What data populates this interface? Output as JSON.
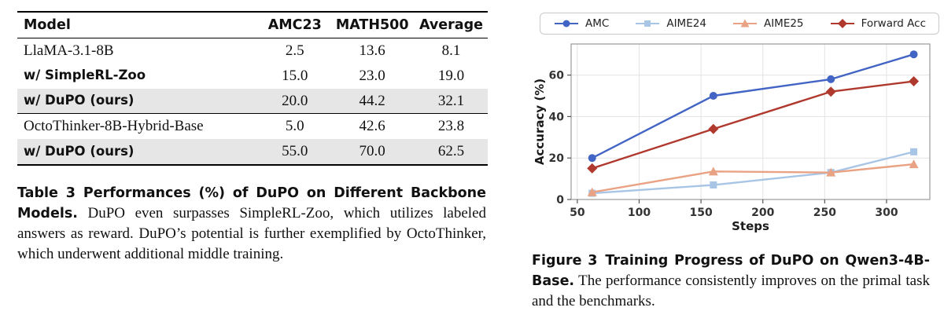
{
  "table": {
    "headers": [
      "Model",
      "AMC23",
      "MATH500",
      "Average"
    ],
    "groups": [
      {
        "rows": [
          {
            "model": "LlaMA-3.1-8B",
            "bold": false,
            "shaded": false,
            "values": [
              "2.5",
              "13.6",
              "8.1"
            ]
          },
          {
            "model": "w/ SimpleRL-Zoo",
            "bold": true,
            "shaded": false,
            "values": [
              "15.0",
              "23.0",
              "19.0"
            ]
          },
          {
            "model": "w/ DuPO (ours)",
            "bold": true,
            "shaded": true,
            "values": [
              "20.0",
              "44.2",
              "32.1"
            ]
          }
        ]
      },
      {
        "rows": [
          {
            "model": "OctoThinker-8B-Hybrid-Base",
            "bold": false,
            "shaded": false,
            "values": [
              "5.0",
              "42.6",
              "23.8"
            ]
          },
          {
            "model": "w/ DuPO (ours)",
            "bold": true,
            "shaded": true,
            "values": [
              "55.0",
              "70.0",
              "62.5"
            ]
          }
        ]
      }
    ],
    "caption_label": "Table 3",
    "caption_title": "Performances (%) of DuPO on Different Backbone Models.",
    "caption_text": "DuPO even surpasses SimpleRL-Zoo, which utilizes labeled answers as reward. DuPO’s potential is further exemplified by OctoThinker, which underwent additional middle training."
  },
  "figure": {
    "caption_label": "Figure 3",
    "caption_title": "Training Progress of DuPO on Qwen3-4B-Base.",
    "caption_text": "The performance consistently improves on the primal task and the benchmarks."
  },
  "chart_data": {
    "type": "line",
    "title": "",
    "xlabel": "Steps",
    "ylabel": "Accuracy (%)",
    "xlim": [
      45,
      335
    ],
    "ylim": [
      0,
      75
    ],
    "xticks": [
      50,
      100,
      150,
      200,
      250,
      300
    ],
    "yticks": [
      0,
      20,
      40,
      60
    ],
    "grid": true,
    "legend_position": "top",
    "series": [
      {
        "name": "AMC",
        "color": "#4264c4",
        "marker": "circle",
        "x": [
          62,
          160,
          255,
          322
        ],
        "y": [
          20,
          50,
          58,
          70
        ]
      },
      {
        "name": "AIME24",
        "color": "#a8c5e6",
        "marker": "square",
        "x": [
          62,
          160,
          255,
          322
        ],
        "y": [
          3,
          7,
          13,
          23
        ]
      },
      {
        "name": "AIME25",
        "color": "#e9a284",
        "marker": "triangle",
        "x": [
          62,
          160,
          255,
          322
        ],
        "y": [
          3.5,
          13.5,
          13,
          17
        ]
      },
      {
        "name": "Forward Acc",
        "color": "#b0392e",
        "marker": "diamond",
        "x": [
          62,
          160,
          255,
          322
        ],
        "y": [
          15,
          34,
          52,
          57
        ]
      }
    ]
  }
}
